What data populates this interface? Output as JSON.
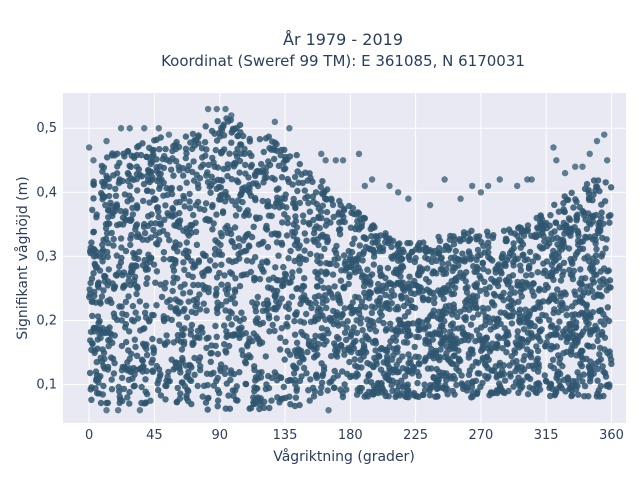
{
  "chart_data": {
    "type": "scatter",
    "title_line1": "År 1979 - 2019",
    "title_line2": "Koordinat (Sweref 99 TM): E 361085, N 6170031",
    "xlabel": "Vågriktning (grader)",
    "ylabel": "Signifikant våghöjd (m)",
    "xlim": [
      -18,
      370
    ],
    "ylim": [
      0.04,
      0.555
    ],
    "xticks": [
      0,
      45,
      90,
      135,
      180,
      225,
      270,
      315,
      360
    ],
    "xtick_labels": [
      "0",
      "45",
      "90",
      "135",
      "180",
      "225",
      "270",
      "315",
      "360"
    ],
    "yticks": [
      0.1,
      0.2,
      0.3,
      0.4,
      0.5
    ],
    "ytick_labels": [
      "0,1",
      "0,2",
      "0,3",
      "0,4",
      "0,5"
    ],
    "grid": true,
    "colors": {
      "marker": "#2f5670",
      "plot_bg": "#e8e9f2",
      "grid": "#ffffff",
      "text": "#2a3f5f"
    },
    "density_envelope": {
      "note": "upper bound of dense point cloud by direction",
      "x": [
        0,
        15,
        30,
        45,
        60,
        75,
        90,
        105,
        120,
        135,
        150,
        165,
        180,
        195,
        210,
        225,
        240,
        255,
        270,
        285,
        300,
        315,
        330,
        345,
        360
      ],
      "upper": [
        0.43,
        0.46,
        0.48,
        0.49,
        0.48,
        0.5,
        0.52,
        0.51,
        0.49,
        0.48,
        0.44,
        0.41,
        0.38,
        0.35,
        0.33,
        0.32,
        0.33,
        0.34,
        0.34,
        0.34,
        0.35,
        0.37,
        0.4,
        0.42,
        0.43
      ],
      "lower": [
        0.07,
        0.07,
        0.07,
        0.07,
        0.07,
        0.06,
        0.06,
        0.06,
        0.06,
        0.06,
        0.07,
        0.08,
        0.08,
        0.08,
        0.08,
        0.08,
        0.08,
        0.08,
        0.08,
        0.08,
        0.08,
        0.08,
        0.08,
        0.08,
        0.08
      ]
    },
    "outliers": [
      {
        "x": 0,
        "y": 0.47
      },
      {
        "x": 3,
        "y": 0.45
      },
      {
        "x": 12,
        "y": 0.48
      },
      {
        "x": 22,
        "y": 0.5
      },
      {
        "x": 28,
        "y": 0.5
      },
      {
        "x": 38,
        "y": 0.5
      },
      {
        "x": 48,
        "y": 0.5
      },
      {
        "x": 55,
        "y": 0.49
      },
      {
        "x": 82,
        "y": 0.53
      },
      {
        "x": 88,
        "y": 0.53
      },
      {
        "x": 94,
        "y": 0.53
      },
      {
        "x": 98,
        "y": 0.52
      },
      {
        "x": 128,
        "y": 0.51
      },
      {
        "x": 138,
        "y": 0.5
      },
      {
        "x": 160,
        "y": 0.46
      },
      {
        "x": 163,
        "y": 0.45
      },
      {
        "x": 170,
        "y": 0.45
      },
      {
        "x": 175,
        "y": 0.45
      },
      {
        "x": 186,
        "y": 0.46
      },
      {
        "x": 190,
        "y": 0.41
      },
      {
        "x": 195,
        "y": 0.42
      },
      {
        "x": 207,
        "y": 0.41
      },
      {
        "x": 213,
        "y": 0.4
      },
      {
        "x": 220,
        "y": 0.39
      },
      {
        "x": 235,
        "y": 0.38
      },
      {
        "x": 245,
        "y": 0.42
      },
      {
        "x": 256,
        "y": 0.39
      },
      {
        "x": 264,
        "y": 0.41
      },
      {
        "x": 270,
        "y": 0.4
      },
      {
        "x": 275,
        "y": 0.41
      },
      {
        "x": 283,
        "y": 0.42
      },
      {
        "x": 295,
        "y": 0.41
      },
      {
        "x": 302,
        "y": 0.42
      },
      {
        "x": 305,
        "y": 0.42
      },
      {
        "x": 320,
        "y": 0.47
      },
      {
        "x": 322,
        "y": 0.45
      },
      {
        "x": 328,
        "y": 0.43
      },
      {
        "x": 335,
        "y": 0.44
      },
      {
        "x": 340,
        "y": 0.44
      },
      {
        "x": 345,
        "y": 0.46
      },
      {
        "x": 350,
        "y": 0.48
      },
      {
        "x": 355,
        "y": 0.49
      },
      {
        "x": 357,
        "y": 0.45
      },
      {
        "x": 165,
        "y": 0.06
      },
      {
        "x": 12,
        "y": 0.06
      },
      {
        "x": 20,
        "y": 0.06
      },
      {
        "x": 35,
        "y": 0.06
      }
    ]
  }
}
